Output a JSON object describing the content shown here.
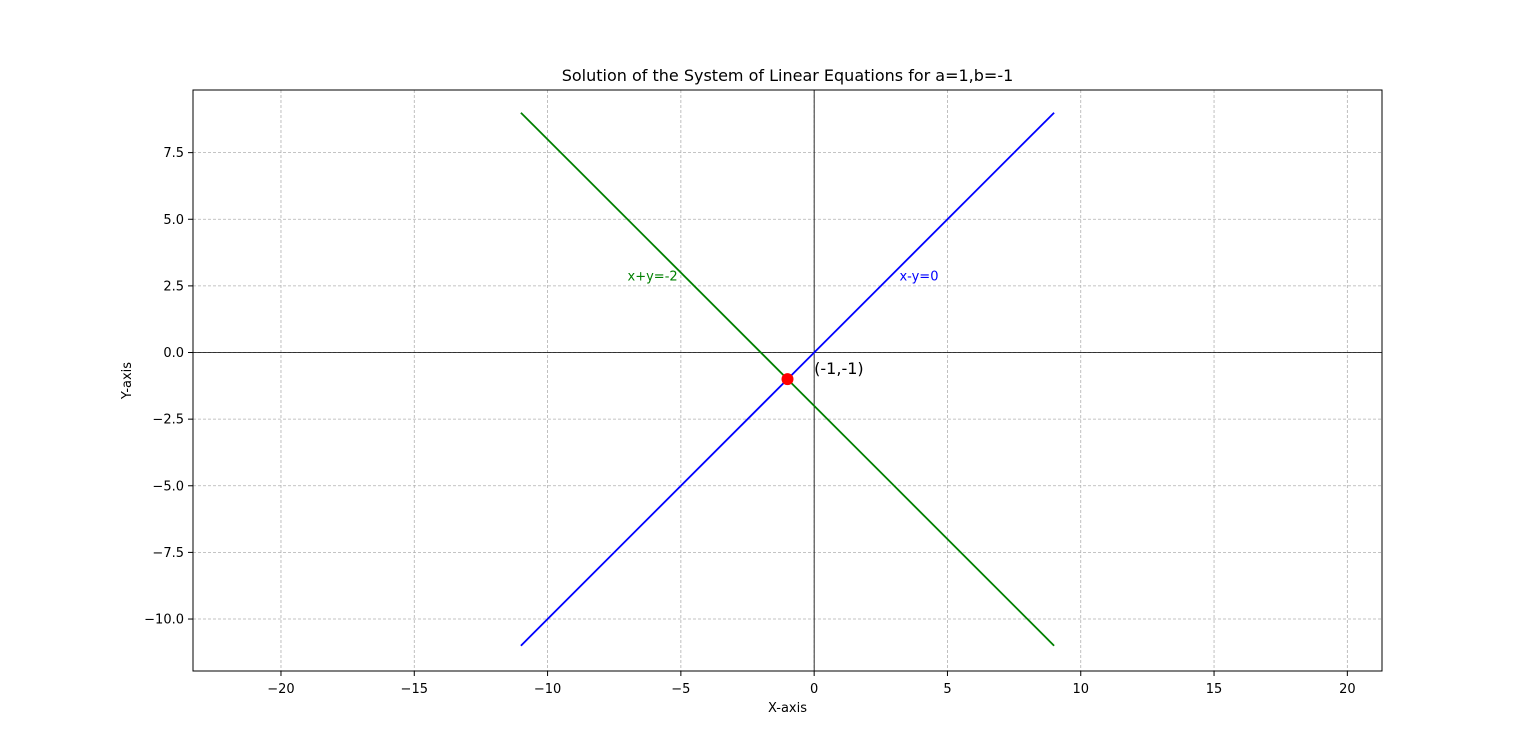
{
  "chart_data": {
    "type": "line",
    "title": "Solution of the System of Linear Equations for a=1,b=-1",
    "xlabel": "X-axis",
    "ylabel": "Y-axis",
    "xlim": [
      -23.3,
      21.3
    ],
    "ylim": [
      -11.95,
      9.85
    ],
    "x_ticks": [
      -20,
      -15,
      -10,
      -5,
      0,
      5,
      10,
      15,
      20
    ],
    "x_tick_labels": [
      "−20",
      "−15",
      "−10",
      "−5",
      "0",
      "5",
      "10",
      "15",
      "20"
    ],
    "y_ticks": [
      -10,
      -7.5,
      -5,
      -2.5,
      0,
      2.5,
      5,
      7.5
    ],
    "y_tick_labels": [
      "−10.0",
      "−7.5",
      "−5.0",
      "−2.5",
      "0.0",
      "2.5",
      "5.0",
      "7.5"
    ],
    "grid": true,
    "series": [
      {
        "name": "x-y=0",
        "color": "#0000ff",
        "points": [
          [
            -11,
            -11
          ],
          [
            9,
            9
          ]
        ],
        "label_position": [
          3.2,
          2.7
        ]
      },
      {
        "name": "x+y=-2",
        "color": "#008000",
        "points": [
          [
            -11,
            9
          ],
          [
            9,
            -11
          ]
        ],
        "label_position": [
          -7.0,
          2.7
        ]
      }
    ],
    "solution_point": {
      "x": -1,
      "y": -1,
      "label": "(-1,-1)",
      "color": "#ff0000",
      "label_position": [
        0.0,
        -0.8
      ]
    }
  }
}
